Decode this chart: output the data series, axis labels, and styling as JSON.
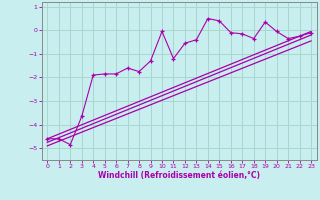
{
  "xlabel": "Windchill (Refroidissement éolien,°C)",
  "bg_color": "#c8eef0",
  "grid_color": "#a8d8cc",
  "line_color": "#aa00aa",
  "x_values": [
    0,
    1,
    2,
    3,
    4,
    5,
    6,
    7,
    8,
    9,
    10,
    11,
    12,
    13,
    14,
    15,
    16,
    17,
    18,
    19,
    20,
    21,
    22,
    23
  ],
  "scatter_y": [
    -4.6,
    -4.6,
    -4.85,
    -3.65,
    -1.9,
    -1.85,
    -1.85,
    -1.6,
    -1.75,
    -1.3,
    -0.05,
    -1.2,
    -0.55,
    -0.4,
    0.5,
    0.4,
    -0.1,
    -0.15,
    -0.35,
    0.35,
    -0.05,
    -0.35,
    -0.25,
    -0.1
  ],
  "line1_x": [
    0,
    23
  ],
  "line1_y": [
    -4.6,
    -0.05
  ],
  "line2_x": [
    0,
    23
  ],
  "line2_y": [
    -4.75,
    -0.2
  ],
  "line3_x": [
    0,
    23
  ],
  "line3_y": [
    -4.9,
    -0.45
  ],
  "ylim": [
    -5.5,
    1.2
  ],
  "xlim": [
    -0.5,
    23.5
  ],
  "yticks": [
    1,
    0,
    -1,
    -2,
    -3,
    -4,
    -5
  ],
  "xticks": [
    0,
    1,
    2,
    3,
    4,
    5,
    6,
    7,
    8,
    9,
    10,
    11,
    12,
    13,
    14,
    15,
    16,
    17,
    18,
    19,
    20,
    21,
    22,
    23
  ]
}
